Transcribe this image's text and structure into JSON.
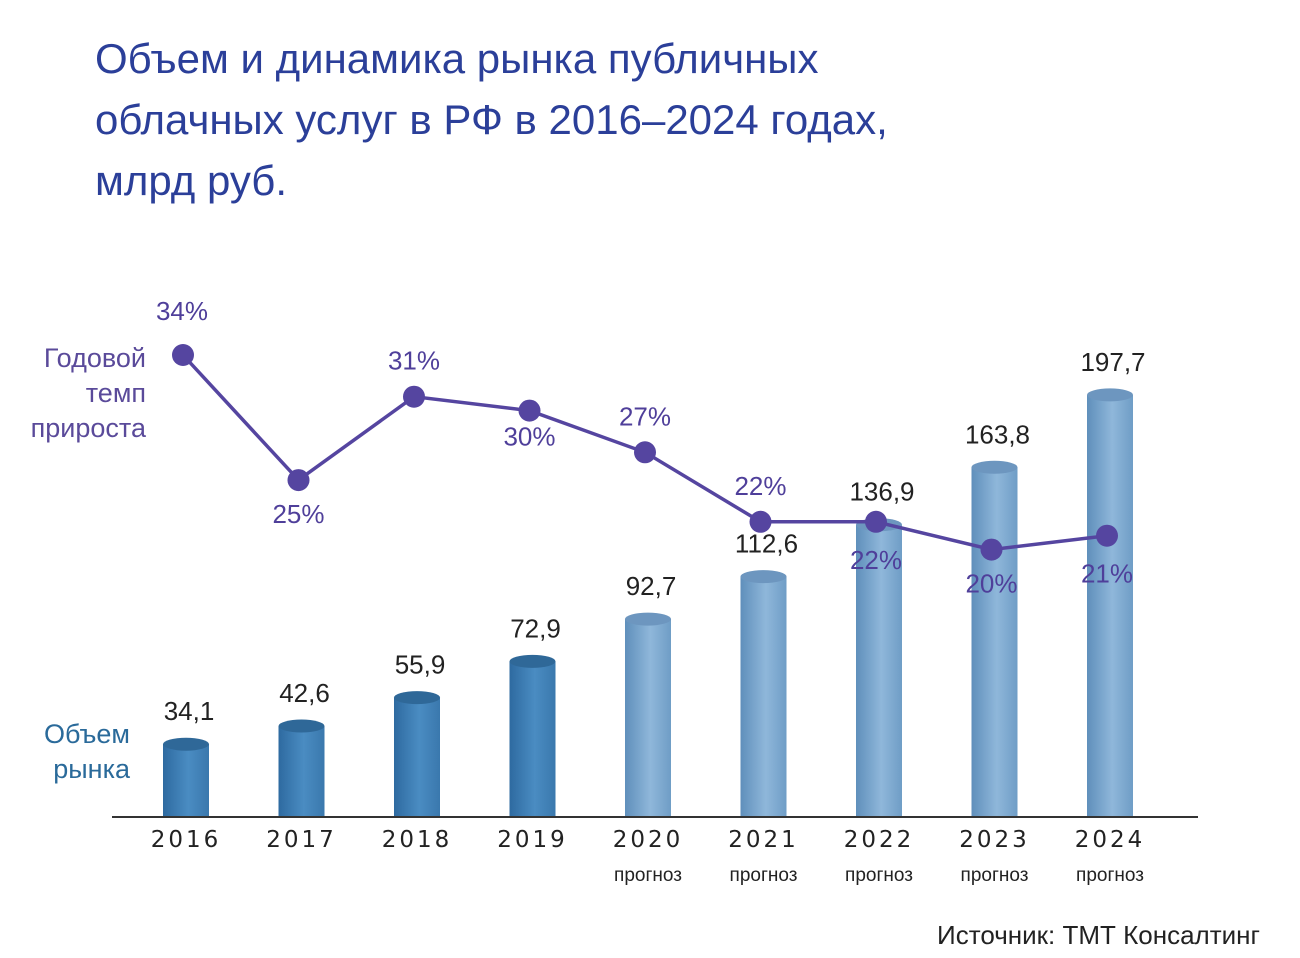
{
  "title": "Объем и динамика рынка публичных\nоблачных услуг в РФ в 2016–2024 годах,\nмлрд руб.",
  "rate_label": "Годовой\nтемп\nприроста",
  "volume_label": "Объем\nрынка",
  "source": "Источник: ТМТ Консалтинг",
  "colors": {
    "title": "#2b3f99",
    "line": "#5545a0",
    "bar_actual": "#3a7fb5",
    "bar_forecast": "#7aa6cc"
  },
  "chart_data": {
    "type": "bar",
    "categories": [
      "2016",
      "2017",
      "2018",
      "2019",
      "2020",
      "2021",
      "2022",
      "2023",
      "2024"
    ],
    "category_notes": [
      "",
      "",
      "",
      "",
      "прогноз",
      "прогноз",
      "прогноз",
      "прогноз",
      "прогноз"
    ],
    "series": [
      {
        "name": "Объем рынка",
        "type": "bar",
        "values": [
          34.1,
          42.6,
          55.9,
          72.9,
          92.7,
          112.6,
          136.9,
          163.8,
          197.7
        ],
        "labels": [
          "34,1",
          "42,6",
          "55,9",
          "72,9",
          "92,7",
          "112,6",
          "136,9",
          "163,8",
          "197,7"
        ],
        "forecast_from_index": 4
      },
      {
        "name": "Годовой темп прироста",
        "type": "line",
        "values": [
          34,
          25,
          31,
          30,
          27,
          22,
          22,
          20,
          21
        ],
        "labels": [
          "34%",
          "25%",
          "31%",
          "30%",
          "27%",
          "22%",
          "22%",
          "20%",
          "21%"
        ]
      }
    ]
  }
}
